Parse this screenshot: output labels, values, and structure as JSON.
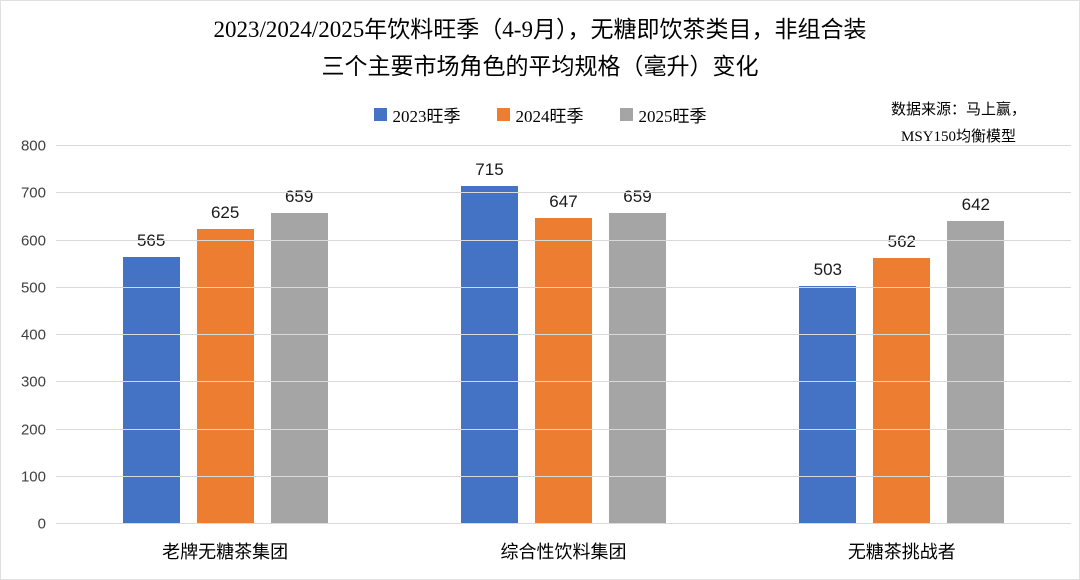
{
  "page": {
    "title_line1": "2023/2024/2025年饮料旺季（4-9月），无糖即饮茶类目，非组合装",
    "title_line2": "三个主要市场角色的平均规格（毫升）变化",
    "source_line1": "数据来源：马上赢，",
    "source_line2": "MSY150均衡模型"
  },
  "chart_data": {
    "type": "bar",
    "title": "2023/2024/2025年饮料旺季（4-9月），无糖即饮茶类目，非组合装 三个主要市场角色的平均规格（毫升）变化",
    "categories": [
      "老牌无糖茶集团",
      "综合性饮料集团",
      "无糖茶挑战者"
    ],
    "series": [
      {
        "name": "2023旺季",
        "color": "#4472C4",
        "values": [
          565,
          715,
          503
        ]
      },
      {
        "name": "2024旺季",
        "color": "#ED7D31",
        "values": [
          625,
          647,
          562
        ]
      },
      {
        "name": "2025旺季",
        "color": "#A5A5A5",
        "values": [
          659,
          659,
          642
        ]
      }
    ],
    "xlabel": "",
    "ylabel": "",
    "ylim": [
      0,
      800
    ],
    "ytick_step": 100,
    "grid": true,
    "legend_position": "top",
    "data_labels": true,
    "source": "数据来源：马上赢，MSY150均衡模型",
    "gridline_color": "#d9d9d9",
    "axis_text_color": "#404040"
  }
}
